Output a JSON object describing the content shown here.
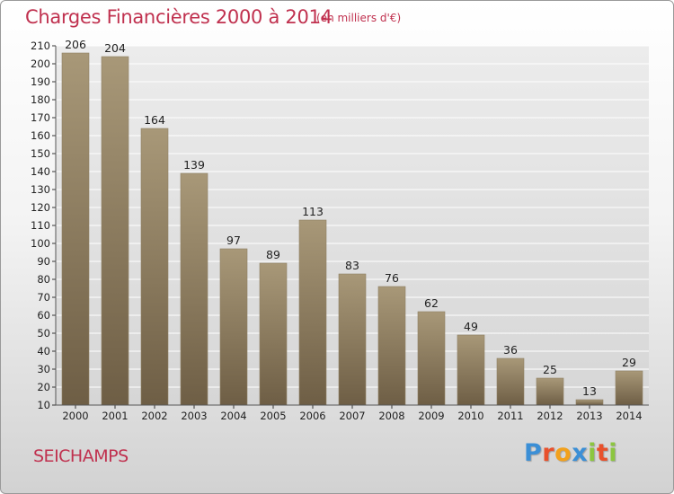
{
  "header": {
    "title": "Charges Financières 2000 à 2014",
    "subtitle": "(en milliers d'€)"
  },
  "footer": {
    "commune": "SEICHAMPS",
    "logo": "Proxiti"
  },
  "colors": {
    "title": "#c0314f",
    "bar_light": "#a89878",
    "bar_dark": "#6e5e45",
    "grid": "#ffffff",
    "logo_letters": [
      "#3b8fd6",
      "#e8512c",
      "#f2a11d",
      "#3b8fd6",
      "#8cc63f",
      "#e8512c",
      "#8cc63f"
    ]
  },
  "chart_data": {
    "type": "bar",
    "title": "Charges Financières 2000 à 2014",
    "subtitle": "(en milliers d'€)",
    "xlabel": "",
    "ylabel": "",
    "categories": [
      "2000",
      "2001",
      "2002",
      "2003",
      "2004",
      "2005",
      "2006",
      "2007",
      "2008",
      "2009",
      "2010",
      "2011",
      "2012",
      "2013",
      "2014"
    ],
    "values": [
      206,
      204,
      164,
      139,
      97,
      89,
      113,
      83,
      76,
      62,
      49,
      36,
      25,
      13,
      29
    ],
    "ylim": [
      10,
      210
    ],
    "yticks": [
      "10",
      "20",
      "30",
      "40",
      "50",
      "60",
      "70",
      "80",
      "90",
      "100",
      "110",
      "120",
      "130",
      "140",
      "150",
      "160",
      "170",
      "180",
      "190",
      "200",
      "210"
    ],
    "grid": true,
    "legend": "none"
  }
}
